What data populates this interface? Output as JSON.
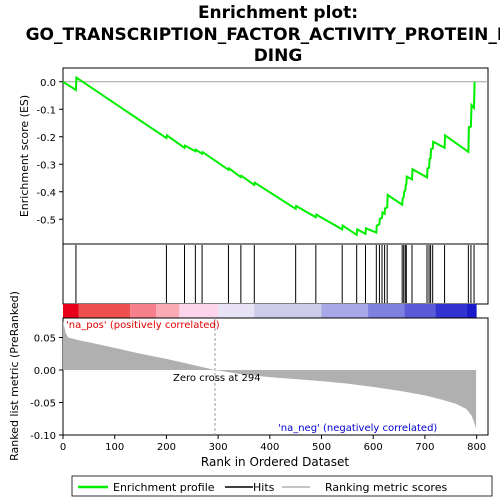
{
  "chart_data": {
    "type": "line",
    "title": "Enrichment plot:\nGO_TRANSCRIPTION_FACTOR_ACTIVITY_PROTEIN_BINDING",
    "title_lines": [
      "Enrichment plot:",
      "GO_TRANSCRIPTION_FACTOR_ACTIVITY_PROTEIN_BIN",
      "DING"
    ],
    "xlabel": "Rank in Ordered Dataset",
    "x_ticks": [
      0,
      100,
      200,
      300,
      400,
      500,
      600,
      700,
      800
    ],
    "xlim": [
      0,
      822
    ],
    "enrichment": {
      "ylabel": "Enrichment score (ES)",
      "ylim": [
        -0.59,
        0.05
      ],
      "y_ticks": [
        0.0,
        -0.1,
        -0.2,
        -0.3,
        -0.4,
        -0.5
      ],
      "y_tick_labels": [
        "0.0",
        "-0.1",
        "-0.2",
        "-0.3",
        "-0.4",
        "-0.5"
      ],
      "color": "#00ee00",
      "points": [
        [
          0,
          0.0
        ],
        [
          25,
          -0.03
        ],
        [
          26,
          0.015
        ],
        [
          200,
          -0.205
        ],
        [
          201,
          -0.195
        ],
        [
          235,
          -0.24
        ],
        [
          236,
          -0.232
        ],
        [
          256,
          -0.253
        ],
        [
          257,
          -0.247
        ],
        [
          269,
          -0.262
        ],
        [
          270,
          -0.256
        ],
        [
          320,
          -0.32
        ],
        [
          321,
          -0.315
        ],
        [
          344,
          -0.347
        ],
        [
          345,
          -0.342
        ],
        [
          370,
          -0.375
        ],
        [
          371,
          -0.367
        ],
        [
          450,
          -0.462
        ],
        [
          451,
          -0.452
        ],
        [
          489,
          -0.493
        ],
        [
          490,
          -0.483
        ],
        [
          540,
          -0.537
        ],
        [
          541,
          -0.523
        ],
        [
          568,
          -0.557
        ],
        [
          569,
          -0.537
        ],
        [
          585,
          -0.553
        ],
        [
          586,
          -0.533
        ],
        [
          606,
          -0.548
        ],
        [
          607,
          -0.523
        ],
        [
          612,
          -0.518
        ],
        [
          613,
          -0.498
        ],
        [
          617,
          -0.495
        ],
        [
          618,
          -0.475
        ],
        [
          622,
          -0.48
        ],
        [
          623,
          -0.46
        ],
        [
          627,
          -0.457
        ],
        [
          628,
          -0.412
        ],
        [
          656,
          -0.447
        ],
        [
          657,
          -0.425
        ],
        [
          659,
          -0.42
        ],
        [
          660,
          -0.4
        ],
        [
          662,
          -0.395
        ],
        [
          663,
          -0.375
        ],
        [
          664,
          -0.373
        ],
        [
          665,
          -0.345
        ],
        [
          675,
          -0.355
        ],
        [
          676,
          -0.318
        ],
        [
          704,
          -0.348
        ],
        [
          705,
          -0.315
        ],
        [
          708,
          -0.313
        ],
        [
          709,
          -0.28
        ],
        [
          711,
          -0.278
        ],
        [
          712,
          -0.245
        ],
        [
          715,
          -0.243
        ],
        [
          716,
          -0.218
        ],
        [
          738,
          -0.24
        ],
        [
          739,
          -0.195
        ],
        [
          784,
          -0.255
        ],
        [
          785,
          -0.165
        ],
        [
          789,
          -0.163
        ],
        [
          790,
          -0.085
        ],
        [
          795,
          -0.095
        ],
        [
          796,
          0.0
        ]
      ]
    },
    "hits": [
      25,
      200,
      235,
      256,
      269,
      320,
      344,
      370,
      450,
      489,
      540,
      568,
      585,
      606,
      612,
      617,
      622,
      627,
      656,
      659,
      662,
      664,
      675,
      704,
      708,
      711,
      715,
      738,
      784,
      789,
      795
    ],
    "ranked_metric": {
      "ylabel": "Ranked list metric (PreRanked)",
      "ylim": [
        -0.1,
        0.08
      ],
      "y_ticks": [
        0.05,
        0.0,
        -0.05,
        -0.1
      ],
      "y_tick_labels": [
        "0.05",
        "0.00",
        "-0.05",
        "-0.10"
      ],
      "profile": [
        [
          0,
          0.075
        ],
        [
          5,
          0.057
        ],
        [
          10,
          0.05
        ],
        [
          30,
          0.046
        ],
        [
          60,
          0.041
        ],
        [
          100,
          0.034
        ],
        [
          150,
          0.025
        ],
        [
          200,
          0.017
        ],
        [
          250,
          0.008
        ],
        [
          294,
          0.0
        ],
        [
          350,
          -0.007
        ],
        [
          400,
          -0.011
        ],
        [
          450,
          -0.014
        ],
        [
          500,
          -0.017
        ],
        [
          550,
          -0.021
        ],
        [
          600,
          -0.026
        ],
        [
          650,
          -0.032
        ],
        [
          700,
          -0.039
        ],
        [
          730,
          -0.045
        ],
        [
          760,
          -0.052
        ],
        [
          780,
          -0.06
        ],
        [
          790,
          -0.07
        ],
        [
          795,
          -0.08
        ],
        [
          799,
          -0.09
        ]
      ],
      "zero_cross_label": "Zero cross at 294",
      "zero_cross": 294,
      "pos_label": "'na_pos' (positively correlated)",
      "neg_label": "'na_neg' (negatively correlated)"
    },
    "color_bar": [
      [
        0,
        30,
        "#e8001a"
      ],
      [
        30,
        130,
        "#ee5050"
      ],
      [
        130,
        180,
        "#f57f8a"
      ],
      [
        180,
        225,
        "#f9aab5"
      ],
      [
        225,
        300,
        "#fcd5ea"
      ],
      [
        300,
        370,
        "#e8e4f5"
      ],
      [
        370,
        500,
        "#cccce8"
      ],
      [
        500,
        590,
        "#a8a8e8"
      ],
      [
        590,
        660,
        "#8080e0"
      ],
      [
        660,
        720,
        "#5a5ad8"
      ],
      [
        720,
        780,
        "#3232d0"
      ],
      [
        780,
        800,
        "#1a1ac8"
      ]
    ],
    "legend": {
      "entries": [
        "Enrichment profile",
        "Hits",
        "Ranking metric scores"
      ],
      "colors": [
        "#00ee00",
        "#000000",
        "#b0b0b0"
      ],
      "placement": "bottom"
    }
  }
}
